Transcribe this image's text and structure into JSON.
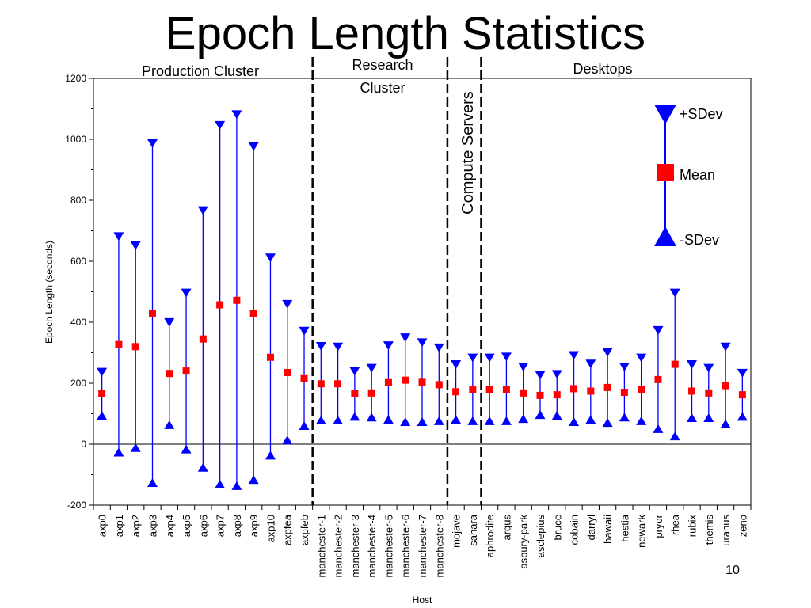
{
  "slide": {
    "title": "Epoch Length Statistics",
    "page_number": "10"
  },
  "colors": {
    "mean": "#ff0000",
    "sdev": "#0000ff",
    "axis": "#000000"
  },
  "groups": {
    "production": "Production Cluster",
    "research_line1": "Research",
    "research_line2": "Cluster",
    "compute": "Compute Servers",
    "desktops": "Desktops"
  },
  "legend": {
    "plus": "+SDev",
    "mean": "Mean",
    "minus": "-SDev"
  },
  "chart_data": {
    "type": "error-bar",
    "xlabel": "Host",
    "ylabel": "Epoch Length (seconds)",
    "ylim": [
      -200,
      1200
    ],
    "yticks": [
      -200,
      0,
      200,
      400,
      600,
      800,
      1000,
      1200
    ],
    "grid": false,
    "legend_position": "top-right",
    "categories": [
      "axp0",
      "axp1",
      "axp2",
      "axp3",
      "axp4",
      "axp5",
      "axp6",
      "axp7",
      "axp8",
      "axp9",
      "axp10",
      "axpfea",
      "axpfeb",
      "manchester-1",
      "manchester-2",
      "manchester-3",
      "manchester-4",
      "manchester-5",
      "manchester-6",
      "manchester-7",
      "manchester-8",
      "mojave",
      "sahara",
      "aphrodite",
      "argus",
      "asbury-park",
      "asclepius",
      "bruce",
      "cobain",
      "darryl",
      "hawaii",
      "hestia",
      "newark",
      "pryor",
      "rhea",
      "rubix",
      "themis",
      "uranus",
      "zeno"
    ],
    "series": [
      {
        "name": "Mean",
        "values": [
          165,
          327,
          320,
          430,
          232,
          240,
          345,
          457,
          472,
          430,
          285,
          235,
          215,
          198,
          198,
          165,
          168,
          202,
          210,
          203,
          195,
          172,
          178,
          178,
          180,
          168,
          160,
          162,
          182,
          174,
          186,
          170,
          178,
          212,
          262,
          174,
          168,
          192,
          162
        ]
      },
      {
        "name": "+SDev",
        "values": [
          245,
          690,
          660,
          995,
          408,
          505,
          775,
          1055,
          1090,
          985,
          620,
          468,
          380,
          330,
          328,
          248,
          258,
          332,
          358,
          342,
          325,
          270,
          292,
          292,
          295,
          262,
          235,
          238,
          300,
          272,
          310,
          262,
          292,
          382,
          505,
          270,
          258,
          328,
          242
        ]
      },
      {
        "name": "-SDev",
        "values": [
          85,
          -35,
          -20,
          -135,
          55,
          -25,
          -85,
          -140,
          -145,
          -125,
          -45,
          5,
          52,
          70,
          70,
          82,
          80,
          72,
          65,
          65,
          68,
          72,
          68,
          68,
          68,
          75,
          88,
          85,
          65,
          72,
          62,
          80,
          68,
          42,
          18,
          78,
          78,
          58,
          82
        ]
      }
    ],
    "dividers_after_category": [
      "axpfeb",
      "manchester-8",
      "sahara"
    ]
  }
}
